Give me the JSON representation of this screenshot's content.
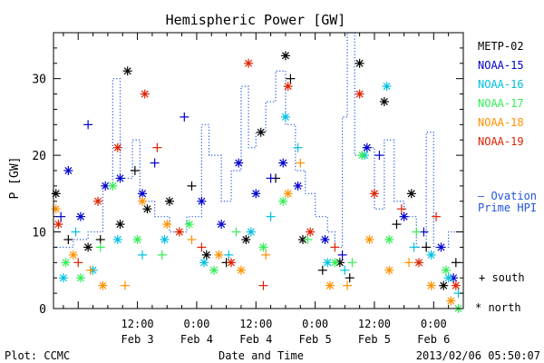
{
  "chart_data": {
    "type": "scatter",
    "title": "Hemispheric Power [GW]",
    "ylabel": "P [GW]",
    "xlabel": "Date and Time",
    "ylim": [
      0,
      36
    ],
    "xlim": [
      "2013-02-02T19:00",
      "2013-02-06T06:00"
    ],
    "xticks": [
      {
        "time": "2013-02-03T12:00",
        "line1": "12:00",
        "line2": "Feb 3"
      },
      {
        "time": "2013-02-04T00:00",
        "line1": "0:00",
        "line2": "Feb 4"
      },
      {
        "time": "2013-02-04T12:00",
        "line1": "12:00",
        "line2": "Feb 4"
      },
      {
        "time": "2013-02-05T00:00",
        "line1": "0:00",
        "line2": "Feb 5"
      },
      {
        "time": "2013-02-05T12:00",
        "line1": "12:00",
        "line2": "Feb 5"
      },
      {
        "time": "2013-02-06T00:00",
        "line1": "0:00",
        "line2": "Feb 6"
      }
    ],
    "yticks": [
      0,
      10,
      20,
      30
    ],
    "grid": false,
    "legend_position": "right",
    "series": [
      {
        "name": "METP-02",
        "color": "#000000",
        "points": [
          {
            "t": "2013-02-02T19:30",
            "v": 15,
            "m": "north"
          },
          {
            "t": "2013-02-02T22:00",
            "v": 9,
            "m": "south"
          },
          {
            "t": "2013-02-03T02:00",
            "v": 8,
            "m": "north"
          },
          {
            "t": "2013-02-03T04:30",
            "v": 9,
            "m": "south"
          },
          {
            "t": "2013-02-03T08:30",
            "v": 11,
            "m": "north"
          },
          {
            "t": "2013-02-03T10:00",
            "v": 31,
            "m": "north"
          },
          {
            "t": "2013-02-03T11:30",
            "v": 18,
            "m": "south"
          },
          {
            "t": "2013-02-03T14:00",
            "v": 13,
            "m": "north"
          },
          {
            "t": "2013-02-03T18:30",
            "v": 14,
            "m": "north"
          },
          {
            "t": "2013-02-03T23:00",
            "v": 16,
            "m": "south"
          },
          {
            "t": "2013-02-04T02:00",
            "v": 7,
            "m": "north"
          },
          {
            "t": "2013-02-04T06:00",
            "v": 6,
            "m": "south"
          },
          {
            "t": "2013-02-04T10:00",
            "v": 9,
            "m": "north"
          },
          {
            "t": "2013-02-04T13:00",
            "v": 23,
            "m": "north"
          },
          {
            "t": "2013-02-04T16:00",
            "v": 17,
            "m": "south"
          },
          {
            "t": "2013-02-04T18:00",
            "v": 33,
            "m": "north"
          },
          {
            "t": "2013-02-04T19:00",
            "v": 30,
            "m": "south"
          },
          {
            "t": "2013-02-04T21:30",
            "v": 9,
            "m": "north"
          },
          {
            "t": "2013-02-05T01:30",
            "v": 5,
            "m": "south"
          },
          {
            "t": "2013-02-05T05:00",
            "v": 6,
            "m": "north"
          },
          {
            "t": "2013-02-05T07:00",
            "v": 4,
            "m": "south"
          },
          {
            "t": "2013-02-05T09:00",
            "v": 32,
            "m": "north"
          },
          {
            "t": "2013-02-05T14:00",
            "v": 27,
            "m": "north"
          },
          {
            "t": "2013-02-05T16:30",
            "v": 11,
            "m": "south"
          },
          {
            "t": "2013-02-05T19:30",
            "v": 15,
            "m": "north"
          },
          {
            "t": "2013-02-05T22:30",
            "v": 8,
            "m": "south"
          },
          {
            "t": "2013-02-06T02:00",
            "v": 3,
            "m": "north"
          },
          {
            "t": "2013-02-06T04:30",
            "v": 6,
            "m": "south"
          }
        ]
      },
      {
        "name": "NOAA-15",
        "color": "#0000cc",
        "points": [
          {
            "t": "2013-02-02T20:30",
            "v": 12,
            "m": "south"
          },
          {
            "t": "2013-02-02T22:00",
            "v": 18,
            "m": "north"
          },
          {
            "t": "2013-02-03T00:30",
            "v": 12,
            "m": "north"
          },
          {
            "t": "2013-02-03T02:00",
            "v": 24,
            "m": "south"
          },
          {
            "t": "2013-02-03T05:30",
            "v": 16,
            "m": "north"
          },
          {
            "t": "2013-02-03T08:30",
            "v": 17,
            "m": "north"
          },
          {
            "t": "2013-02-03T13:00",
            "v": 15,
            "m": "north"
          },
          {
            "t": "2013-02-03T15:30",
            "v": 19,
            "m": "south"
          },
          {
            "t": "2013-02-03T21:30",
            "v": 25,
            "m": "south"
          },
          {
            "t": "2013-02-04T01:00",
            "v": 14,
            "m": "north"
          },
          {
            "t": "2013-02-04T05:00",
            "v": 11,
            "m": "north"
          },
          {
            "t": "2013-02-04T08:30",
            "v": 19,
            "m": "north"
          },
          {
            "t": "2013-02-04T12:00",
            "v": 15,
            "m": "north"
          },
          {
            "t": "2013-02-04T15:00",
            "v": 17,
            "m": "south"
          },
          {
            "t": "2013-02-04T17:30",
            "v": 19,
            "m": "north"
          },
          {
            "t": "2013-02-04T20:30",
            "v": 16,
            "m": "north"
          },
          {
            "t": "2013-02-05T02:00",
            "v": 9,
            "m": "north"
          },
          {
            "t": "2013-02-05T05:30",
            "v": 7,
            "m": "south"
          },
          {
            "t": "2013-02-05T10:30",
            "v": 21,
            "m": "north"
          },
          {
            "t": "2013-02-05T13:00",
            "v": 20,
            "m": "south"
          },
          {
            "t": "2013-02-05T18:00",
            "v": 12,
            "m": "north"
          },
          {
            "t": "2013-02-05T22:00",
            "v": 10,
            "m": "south"
          },
          {
            "t": "2013-02-06T01:30",
            "v": 8,
            "m": "north"
          },
          {
            "t": "2013-02-06T04:00",
            "v": 4,
            "m": "north"
          }
        ]
      },
      {
        "name": "NOAA-16",
        "color": "#00c0e0",
        "points": [
          {
            "t": "2013-02-02T21:00",
            "v": 4,
            "m": "north"
          },
          {
            "t": "2013-02-02T23:30",
            "v": 10,
            "m": "south"
          },
          {
            "t": "2013-02-03T03:00",
            "v": 5,
            "m": "north"
          },
          {
            "t": "2013-02-03T08:00",
            "v": 9,
            "m": "north"
          },
          {
            "t": "2013-02-03T13:00",
            "v": 7,
            "m": "south"
          },
          {
            "t": "2013-02-03T17:30",
            "v": 9,
            "m": "north"
          },
          {
            "t": "2013-02-04T01:30",
            "v": 6,
            "m": "north"
          },
          {
            "t": "2013-02-04T06:30",
            "v": 7,
            "m": "south"
          },
          {
            "t": "2013-02-04T11:00",
            "v": 10,
            "m": "north"
          },
          {
            "t": "2013-02-04T15:00",
            "v": 12,
            "m": "south"
          },
          {
            "t": "2013-02-04T18:00",
            "v": 25,
            "m": "north"
          },
          {
            "t": "2013-02-04T20:30",
            "v": 21,
            "m": "south"
          },
          {
            "t": "2013-02-05T02:30",
            "v": 6,
            "m": "north"
          },
          {
            "t": "2013-02-05T06:00",
            "v": 5,
            "m": "south"
          },
          {
            "t": "2013-02-05T10:00",
            "v": 20,
            "m": "north"
          },
          {
            "t": "2013-02-05T14:30",
            "v": 29,
            "m": "north"
          },
          {
            "t": "2013-02-05T20:00",
            "v": 8,
            "m": "south"
          },
          {
            "t": "2013-02-05T23:30",
            "v": 7,
            "m": "north"
          },
          {
            "t": "2013-02-06T03:00",
            "v": 4,
            "m": "north"
          },
          {
            "t": "2013-02-06T05:00",
            "v": 2,
            "m": "south"
          }
        ]
      },
      {
        "name": "NOAA-17",
        "color": "#33ee55",
        "points": [
          {
            "t": "2013-02-02T21:30",
            "v": 6,
            "m": "north"
          },
          {
            "t": "2013-02-03T00:30",
            "v": 4,
            "m": "north"
          },
          {
            "t": "2013-02-03T04:30",
            "v": 8,
            "m": "south"
          },
          {
            "t": "2013-02-03T07:00",
            "v": 16,
            "m": "north"
          },
          {
            "t": "2013-02-03T12:00",
            "v": 9,
            "m": "north"
          },
          {
            "t": "2013-02-03T17:00",
            "v": 7,
            "m": "south"
          },
          {
            "t": "2013-02-03T22:30",
            "v": 11,
            "m": "north"
          },
          {
            "t": "2013-02-04T03:30",
            "v": 5,
            "m": "north"
          },
          {
            "t": "2013-02-04T08:00",
            "v": 10,
            "m": "south"
          },
          {
            "t": "2013-02-04T13:30",
            "v": 8,
            "m": "north"
          },
          {
            "t": "2013-02-04T17:30",
            "v": 14,
            "m": "north"
          },
          {
            "t": "2013-02-04T22:30",
            "v": 9,
            "m": "south"
          },
          {
            "t": "2013-02-05T04:00",
            "v": 6,
            "m": "north"
          },
          {
            "t": "2013-02-05T07:30",
            "v": 6,
            "m": "south"
          },
          {
            "t": "2013-02-05T09:30",
            "v": 20,
            "m": "north"
          },
          {
            "t": "2013-02-05T15:00",
            "v": 9,
            "m": "north"
          },
          {
            "t": "2013-02-05T20:30",
            "v": 10,
            "m": "south"
          },
          {
            "t": "2013-02-06T02:30",
            "v": 5,
            "m": "north"
          },
          {
            "t": "2013-02-06T05:00",
            "v": 0,
            "m": "north"
          }
        ]
      },
      {
        "name": "NOAA-18",
        "color": "#ff9000",
        "points": [
          {
            "t": "2013-02-02T19:30",
            "v": 13,
            "m": "north"
          },
          {
            "t": "2013-02-02T23:00",
            "v": 7,
            "m": "north"
          },
          {
            "t": "2013-02-03T02:30",
            "v": 5,
            "m": "south"
          },
          {
            "t": "2013-02-03T05:00",
            "v": 3,
            "m": "north"
          },
          {
            "t": "2013-02-03T09:30",
            "v": 3,
            "m": "south"
          },
          {
            "t": "2013-02-03T13:00",
            "v": 14,
            "m": "north"
          },
          {
            "t": "2013-02-03T18:00",
            "v": 11,
            "m": "north"
          },
          {
            "t": "2013-02-03T23:00",
            "v": 9,
            "m": "south"
          },
          {
            "t": "2013-02-04T04:30",
            "v": 7,
            "m": "north"
          },
          {
            "t": "2013-02-04T09:00",
            "v": 5,
            "m": "north"
          },
          {
            "t": "2013-02-04T14:00",
            "v": 7,
            "m": "south"
          },
          {
            "t": "2013-02-04T18:30",
            "v": 15,
            "m": "north"
          },
          {
            "t": "2013-02-04T21:00",
            "v": 19,
            "m": "south"
          },
          {
            "t": "2013-02-05T03:00",
            "v": 3,
            "m": "north"
          },
          {
            "t": "2013-02-05T06:30",
            "v": 3,
            "m": "south"
          },
          {
            "t": "2013-02-05T11:00",
            "v": 9,
            "m": "north"
          },
          {
            "t": "2013-02-05T15:00",
            "v": 5,
            "m": "north"
          },
          {
            "t": "2013-02-05T19:00",
            "v": 6,
            "m": "south"
          },
          {
            "t": "2013-02-05T23:30",
            "v": 3,
            "m": "north"
          },
          {
            "t": "2013-02-06T03:30",
            "v": 1,
            "m": "north"
          }
        ]
      },
      {
        "name": "NOAA-19",
        "color": "#dd2200",
        "points": [
          {
            "t": "2013-02-02T20:00",
            "v": 11,
            "m": "north"
          },
          {
            "t": "2013-02-03T00:00",
            "v": 6,
            "m": "south"
          },
          {
            "t": "2013-02-03T04:00",
            "v": 14,
            "m": "north"
          },
          {
            "t": "2013-02-03T08:00",
            "v": 21,
            "m": "north"
          },
          {
            "t": "2013-02-03T13:30",
            "v": 28,
            "m": "north"
          },
          {
            "t": "2013-02-03T16:00",
            "v": 21,
            "m": "south"
          },
          {
            "t": "2013-02-03T20:30",
            "v": 10,
            "m": "north"
          },
          {
            "t": "2013-02-04T01:00",
            "v": 8,
            "m": "south"
          },
          {
            "t": "2013-02-04T07:00",
            "v": 6,
            "m": "north"
          },
          {
            "t": "2013-02-04T10:30",
            "v": 32,
            "m": "north"
          },
          {
            "t": "2013-02-04T13:30",
            "v": 3,
            "m": "south"
          },
          {
            "t": "2013-02-04T18:30",
            "v": 29,
            "m": "north"
          },
          {
            "t": "2013-02-04T23:00",
            "v": 10,
            "m": "north"
          },
          {
            "t": "2013-02-05T04:00",
            "v": 8,
            "m": "south"
          },
          {
            "t": "2013-02-05T09:00",
            "v": 28,
            "m": "north"
          },
          {
            "t": "2013-02-05T12:00",
            "v": 15,
            "m": "north"
          },
          {
            "t": "2013-02-05T17:30",
            "v": 13,
            "m": "south"
          },
          {
            "t": "2013-02-05T21:00",
            "v": 6,
            "m": "north"
          },
          {
            "t": "2013-02-06T00:30",
            "v": 12,
            "m": "south"
          },
          {
            "t": "2013-02-06T04:30",
            "v": 3,
            "m": "north"
          }
        ]
      }
    ],
    "ovation": {
      "name": "Ovation Prime HPI",
      "color": "#2255dd",
      "steps": [
        {
          "t": "2013-02-02T19:00",
          "v": 8
        },
        {
          "t": "2013-02-02T23:00",
          "v": 9
        },
        {
          "t": "2013-02-03T02:00",
          "v": 10
        },
        {
          "t": "2013-02-03T05:00",
          "v": 16
        },
        {
          "t": "2013-02-03T07:00",
          "v": 30
        },
        {
          "t": "2013-02-03T08:30",
          "v": 17
        },
        {
          "t": "2013-02-03T11:00",
          "v": 22
        },
        {
          "t": "2013-02-03T12:30",
          "v": 14
        },
        {
          "t": "2013-02-03T15:30",
          "v": 12
        },
        {
          "t": "2013-02-03T18:30",
          "v": 10
        },
        {
          "t": "2013-02-03T22:00",
          "v": 12
        },
        {
          "t": "2013-02-04T01:00",
          "v": 24
        },
        {
          "t": "2013-02-04T02:30",
          "v": 20
        },
        {
          "t": "2013-02-04T05:00",
          "v": 14
        },
        {
          "t": "2013-02-04T07:00",
          "v": 18
        },
        {
          "t": "2013-02-04T09:00",
          "v": 29
        },
        {
          "t": "2013-02-04T10:30",
          "v": 21
        },
        {
          "t": "2013-02-04T12:00",
          "v": 23
        },
        {
          "t": "2013-02-04T14:00",
          "v": 27
        },
        {
          "t": "2013-02-04T16:00",
          "v": 31
        },
        {
          "t": "2013-02-04T18:00",
          "v": 24
        },
        {
          "t": "2013-02-04T20:00",
          "v": 18
        },
        {
          "t": "2013-02-04T22:00",
          "v": 15
        },
        {
          "t": "2013-02-05T00:00",
          "v": 12
        },
        {
          "t": "2013-02-05T02:30",
          "v": 10
        },
        {
          "t": "2013-02-05T04:00",
          "v": 8
        },
        {
          "t": "2013-02-05T05:30",
          "v": 25
        },
        {
          "t": "2013-02-05T06:30",
          "v": 36
        },
        {
          "t": "2013-02-05T08:00",
          "v": 20
        },
        {
          "t": "2013-02-05T10:00",
          "v": 21
        },
        {
          "t": "2013-02-05T12:00",
          "v": 13
        },
        {
          "t": "2013-02-05T14:00",
          "v": 22
        },
        {
          "t": "2013-02-05T16:00",
          "v": 14
        },
        {
          "t": "2013-02-05T18:00",
          "v": 12
        },
        {
          "t": "2013-02-05T20:30",
          "v": 8
        },
        {
          "t": "2013-02-05T22:30",
          "v": 23
        },
        {
          "t": "2013-02-06T00:00",
          "v": 8
        },
        {
          "t": "2013-02-06T03:00",
          "v": 10
        }
      ]
    },
    "legend_labels": {
      "ovation_line1": "– Ovation",
      "ovation_line2": "Prime HPI",
      "south": "+ south",
      "north": "* north"
    },
    "footer": {
      "left": "Plot: CCMC",
      "right": "2013/02/06 05:50:07"
    }
  }
}
